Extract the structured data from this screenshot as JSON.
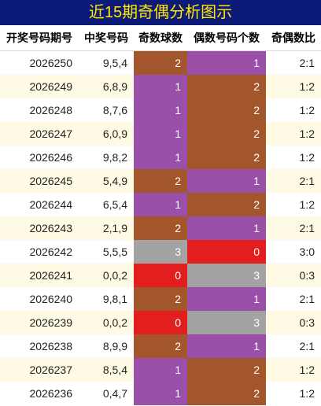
{
  "header": {
    "title": "近15期奇偶分析图示"
  },
  "table": {
    "columns": [
      "开奖号码期号",
      "中奖号码",
      "奇数球数",
      "偶数号码个数",
      "奇偶数比"
    ],
    "rows": [
      [
        "2026250",
        "9,5,4",
        2,
        1,
        "2:1"
      ],
      [
        "2026249",
        "6,8,9",
        1,
        2,
        "1:2"
      ],
      [
        "2026248",
        "8,7,6",
        1,
        2,
        "1:2"
      ],
      [
        "2026247",
        "6,0,9",
        1,
        2,
        "1:2"
      ],
      [
        "2026246",
        "9,8,2",
        1,
        2,
        "1:2"
      ],
      [
        "2026245",
        "5,4,9",
        2,
        1,
        "2:1"
      ],
      [
        "2026244",
        "6,5,4",
        1,
        2,
        "1:2"
      ],
      [
        "2026243",
        "2,1,9",
        2,
        1,
        "2:1"
      ],
      [
        "2026242",
        "5,5,5",
        3,
        0,
        "3:0"
      ],
      [
        "2026241",
        "0,0,2",
        0,
        3,
        "0:3"
      ],
      [
        "2026240",
        "9,8,1",
        2,
        1,
        "2:1"
      ],
      [
        "2026239",
        "0,0,2",
        0,
        3,
        "0:3"
      ],
      [
        "2026238",
        "8,9,9",
        2,
        1,
        "2:1"
      ],
      [
        "2026237",
        "8,5,4",
        1,
        2,
        "1:2"
      ],
      [
        "2026236",
        "0,4,7",
        1,
        2,
        "1:2"
      ]
    ]
  }
}
